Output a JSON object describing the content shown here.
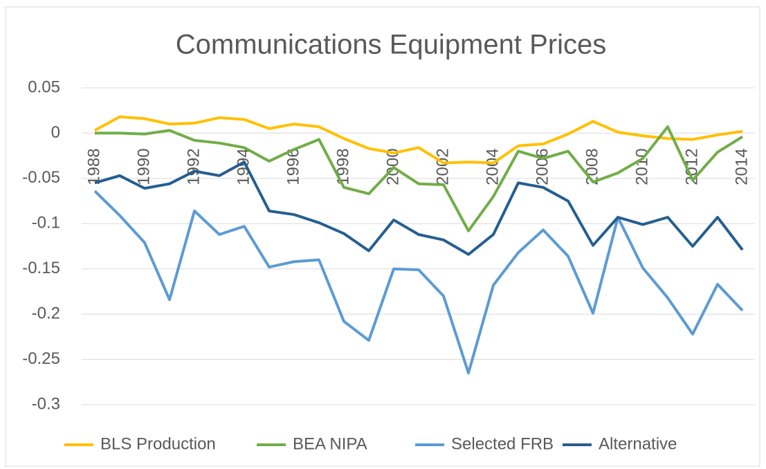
{
  "chart_data": {
    "type": "line",
    "title": "Communications Equipment Prices",
    "categories": [
      "1988",
      null,
      "1990",
      null,
      "1992",
      null,
      "1994",
      null,
      "1996",
      null,
      "1998",
      null,
      "2000",
      null,
      "2002",
      null,
      "2004",
      null,
      "2006",
      null,
      "2008",
      null,
      "2010",
      null,
      "2012",
      null,
      "2014"
    ],
    "series": [
      {
        "name": "BLS Production",
        "color": "#ffc000",
        "values": [
          0.003,
          0.018,
          0.016,
          0.01,
          0.011,
          0.017,
          0.015,
          0.005,
          0.01,
          0.007,
          -0.006,
          -0.017,
          -0.022,
          -0.016,
          -0.033,
          -0.032,
          -0.033,
          -0.014,
          -0.012,
          -0.001,
          0.013,
          0.001,
          -0.003,
          -0.006,
          -0.007,
          -0.002,
          0.002
        ]
      },
      {
        "name": "BEA NIPA",
        "color": "#70ad47",
        "values": [
          0,
          0,
          -0.001,
          0.003,
          -0.008,
          -0.011,
          -0.016,
          -0.031,
          -0.018,
          -0.007,
          -0.06,
          -0.067,
          -0.038,
          -0.056,
          -0.057,
          -0.108,
          -0.07,
          -0.02,
          -0.028,
          -0.02,
          -0.054,
          -0.044,
          -0.028,
          0.007,
          -0.052,
          -0.021,
          -0.004
        ]
      },
      {
        "name": "Selected FRB",
        "color": "#5b9bd5",
        "values": [
          -0.064,
          -0.091,
          -0.121,
          -0.184,
          -0.086,
          -0.112,
          -0.103,
          -0.148,
          -0.142,
          -0.14,
          -0.208,
          -0.229,
          -0.15,
          -0.151,
          -0.18,
          -0.265,
          -0.168,
          -0.132,
          -0.107,
          -0.136,
          -0.199,
          -0.093,
          -0.149,
          -0.182,
          -0.222,
          -0.167,
          -0.196
        ]
      },
      {
        "name": "Alternative",
        "color": "#255e91",
        "values": [
          -0.055,
          -0.047,
          -0.061,
          -0.056,
          -0.042,
          -0.047,
          -0.032,
          -0.086,
          -0.09,
          -0.099,
          -0.111,
          -0.13,
          -0.096,
          -0.112,
          -0.118,
          -0.134,
          -0.112,
          -0.055,
          -0.06,
          -0.075,
          -0.124,
          -0.093,
          -0.101,
          -0.093,
          -0.125,
          -0.093,
          -0.129
        ]
      }
    ],
    "ylim": [
      -0.3,
      0.05
    ],
    "yticks": [
      0.05,
      0,
      -0.05,
      -0.1,
      -0.15,
      -0.2,
      -0.25,
      -0.3
    ],
    "grid": true,
    "legend": "bottom"
  }
}
